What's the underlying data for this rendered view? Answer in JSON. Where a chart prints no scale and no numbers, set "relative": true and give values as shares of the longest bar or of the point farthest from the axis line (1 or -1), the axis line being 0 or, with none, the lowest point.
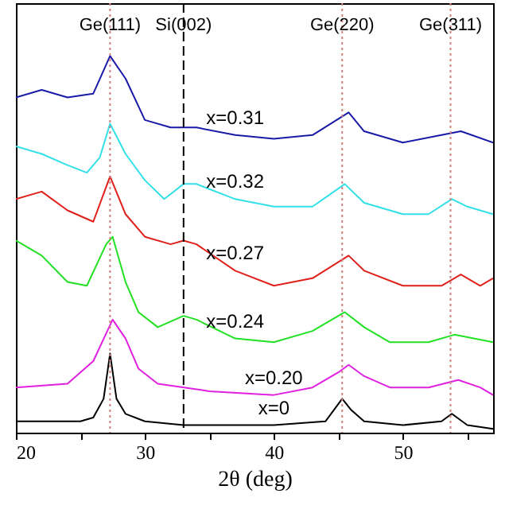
{
  "chart_data": {
    "type": "line",
    "relative": true,
    "xlabel": "2θ (deg)",
    "xlim": [
      20,
      57
    ],
    "xticks": [
      20,
      {
        "value": 25,
        "label": null
      },
      30,
      {
        "value": 35,
        "label": null
      },
      40,
      {
        "value": 45,
        "label": null
      },
      50,
      {
        "value": 55,
        "label": null
      }
    ],
    "grid": false,
    "series": [
      {
        "name": "x=0.31",
        "color": "#1a1aa8",
        "x": [
          20,
          22,
          24,
          26,
          27.3,
          28.5,
          30,
          32,
          33,
          34,
          37,
          40,
          43,
          45.8,
          47,
          50,
          53,
          54.5,
          57
        ],
        "values": [
          0.89,
          0.91,
          0.89,
          0.9,
          1.0,
          0.94,
          0.83,
          0.81,
          0.81,
          0.81,
          0.79,
          0.78,
          0.79,
          0.85,
          0.8,
          0.77,
          0.79,
          0.8,
          0.77
        ]
      },
      {
        "name": "x=0.32",
        "color": "#33e0e8",
        "x": [
          20,
          22,
          24,
          25.5,
          26.5,
          27.3,
          28.5,
          30,
          31.5,
          33,
          34,
          37,
          40,
          43,
          45.5,
          47,
          50,
          52,
          53.8,
          55,
          57
        ],
        "values": [
          0.76,
          0.74,
          0.71,
          0.69,
          0.73,
          0.82,
          0.74,
          0.67,
          0.62,
          0.66,
          0.66,
          0.62,
          0.6,
          0.6,
          0.66,
          0.61,
          0.58,
          0.58,
          0.62,
          0.6,
          0.58
        ]
      },
      {
        "name": "x=0.27",
        "color": "#e0201a",
        "x": [
          20,
          22,
          24,
          26,
          27.3,
          28.5,
          30,
          32,
          33,
          34,
          37,
          40,
          43,
          45.8,
          47,
          50,
          53,
          54.5,
          56,
          57
        ],
        "values": [
          0.62,
          0.64,
          0.59,
          0.56,
          0.68,
          0.58,
          0.52,
          0.5,
          0.51,
          0.5,
          0.43,
          0.39,
          0.41,
          0.47,
          0.43,
          0.39,
          0.39,
          0.42,
          0.39,
          0.41
        ]
      },
      {
        "name": "x=0.24",
        "color": "#22e022",
        "x": [
          20,
          22,
          24,
          25.5,
          27,
          27.5,
          28.5,
          29.5,
          31,
          33,
          34,
          37,
          40,
          43,
          45.5,
          47,
          49,
          52,
          54,
          57
        ],
        "values": [
          0.51,
          0.47,
          0.4,
          0.39,
          0.5,
          0.52,
          0.4,
          0.32,
          0.28,
          0.31,
          0.3,
          0.25,
          0.24,
          0.27,
          0.32,
          0.28,
          0.24,
          0.24,
          0.26,
          0.24
        ]
      },
      {
        "name": "x=0.20",
        "color": "#e020e0",
        "x": [
          20,
          24,
          26,
          27.5,
          28.5,
          29.5,
          31,
          35,
          40,
          43,
          45,
          45.8,
          47,
          49,
          52,
          54.3,
          56,
          57
        ],
        "values": [
          0.12,
          0.13,
          0.19,
          0.3,
          0.25,
          0.17,
          0.13,
          0.11,
          0.1,
          0.12,
          0.16,
          0.18,
          0.15,
          0.12,
          0.12,
          0.14,
          0.12,
          0.1
        ]
      },
      {
        "name": "x=0",
        "color": "#000000",
        "x": [
          20,
          25,
          26,
          26.8,
          27.3,
          27.8,
          28.5,
          30,
          33,
          40,
          44,
          45.3,
          46,
          47,
          50,
          53,
          53.8,
          55,
          57
        ],
        "values": [
          0.03,
          0.03,
          0.04,
          0.09,
          0.21,
          0.09,
          0.05,
          0.03,
          0.02,
          0.02,
          0.03,
          0.09,
          0.06,
          0.03,
          0.02,
          0.03,
          0.05,
          0.02,
          0.01
        ]
      }
    ],
    "ref_lines": [
      {
        "axis": "x",
        "value": 27.3,
        "label": "Ge(111)",
        "color": "#d08080",
        "line_style": "dotted"
      },
      {
        "axis": "x",
        "value": 33,
        "label": "Si(002)",
        "color": "#000000",
        "line_style": "dashed"
      },
      {
        "axis": "x",
        "value": 45.3,
        "label": "Ge(220)",
        "color": "#d08080",
        "line_style": "dotted"
      },
      {
        "axis": "x",
        "value": 53.7,
        "label": "Ge(311)",
        "color": "#d08080",
        "line_style": "dotted"
      }
    ]
  }
}
